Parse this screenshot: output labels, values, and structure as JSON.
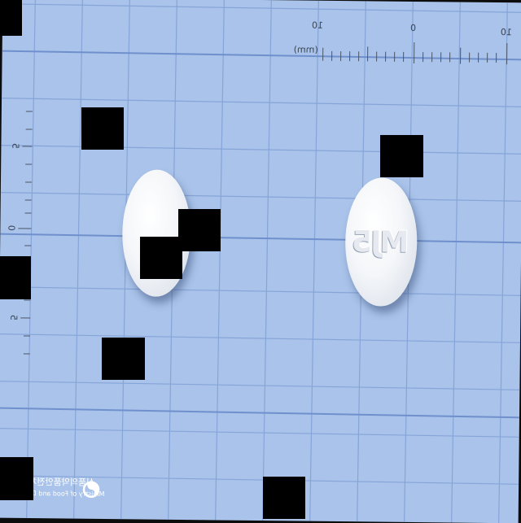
{
  "ruler": {
    "unit_label": "(mm)",
    "h_labels": [
      "10",
      "0",
      "10"
    ],
    "v_labels": [
      "5",
      "0",
      "5"
    ]
  },
  "pill_right": {
    "imprint": "MJ5"
  },
  "watermark": {
    "korean": "식품의약품안전처",
    "english": "Ministry of Food and Drug Safety"
  },
  "colors": {
    "background": "#a9c3ea",
    "grid": "#7e9ed6",
    "pill": "#f2f4f7"
  }
}
